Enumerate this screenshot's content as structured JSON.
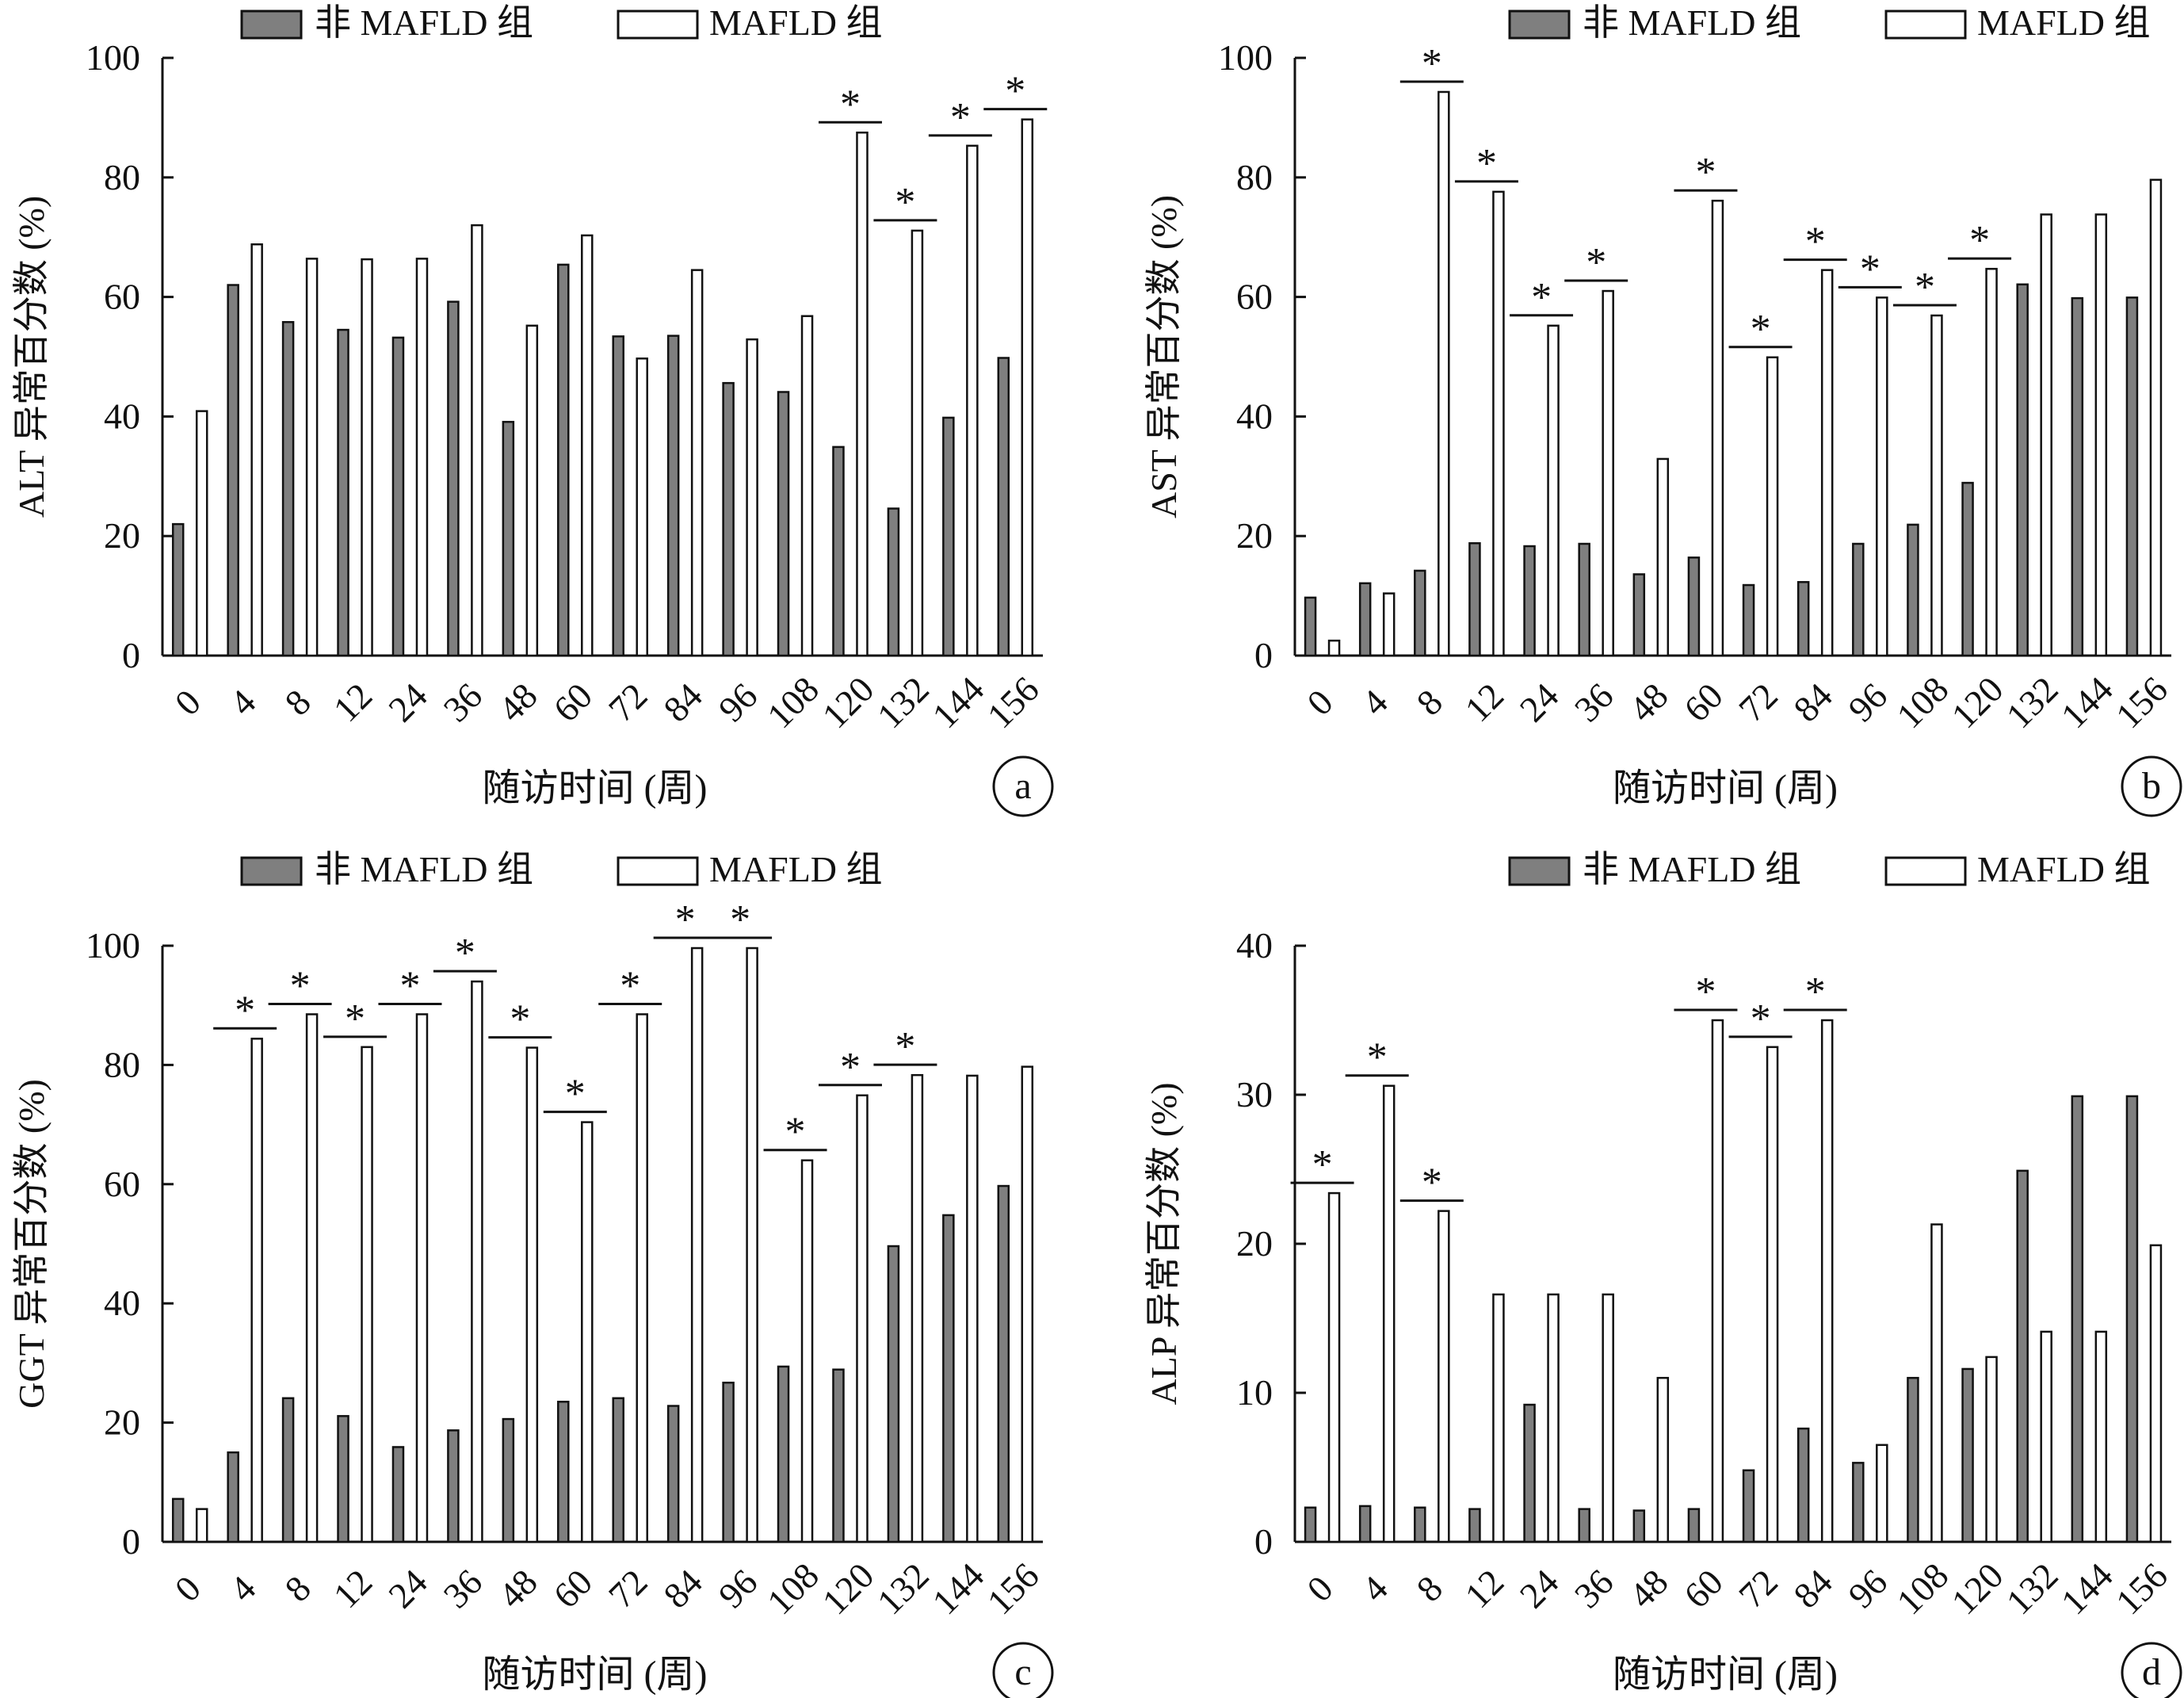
{
  "legend": {
    "non_mafld": "非 MAFLD 组",
    "mafld": "MAFLD 组"
  },
  "colors": {
    "non_mafld_fill": "#7f7f7f",
    "mafld_fill": "#ffffff",
    "stroke": "#111111"
  },
  "chart_data": [
    {
      "type": "bar",
      "panel_letter": "a",
      "ylabel": "ALT 异常百分数 (%)",
      "xlabel": "随访时间 (周)",
      "ylim": [
        0,
        100
      ],
      "yticks": [
        0,
        20,
        40,
        60,
        80,
        100
      ],
      "categories": [
        "0",
        "4",
        "8",
        "12",
        "24",
        "36",
        "48",
        "60",
        "72",
        "84",
        "96",
        "108",
        "120",
        "132",
        "144",
        "156"
      ],
      "series": [
        {
          "name": "非 MAFLD 组",
          "values": [
            22,
            62,
            55.8,
            54.5,
            53.2,
            59.2,
            39.1,
            65.4,
            53.4,
            53.5,
            45.6,
            44.1,
            34.9,
            24.6,
            39.8,
            49.8
          ]
        },
        {
          "name": "MAFLD 组",
          "values": [
            40.9,
            68.8,
            66.4,
            66.3,
            66.4,
            72,
            55.2,
            70.3,
            49.7,
            64.5,
            52.9,
            56.8,
            87.5,
            71.1,
            85.3,
            89.7
          ]
        }
      ],
      "significance": [
        "",
        "",
        "",
        "",
        "",
        "",
        "",
        "",
        "",
        "",
        "",
        "",
        "*",
        "*",
        "*",
        "*"
      ],
      "grid": false,
      "legend_position": "top"
    },
    {
      "type": "bar",
      "panel_letter": "b",
      "ylabel": "AST 异常百分数 (%)",
      "xlabel": "随访时间 (周)",
      "ylim": [
        0,
        100
      ],
      "yticks": [
        0,
        20,
        40,
        60,
        80,
        100
      ],
      "categories": [
        "0",
        "4",
        "8",
        "12",
        "24",
        "36",
        "48",
        "60",
        "72",
        "84",
        "96",
        "108",
        "120",
        "132",
        "144",
        "156"
      ],
      "series": [
        {
          "name": "非 MAFLD 组",
          "values": [
            9.7,
            12.1,
            14.2,
            18.8,
            18.3,
            18.7,
            13.6,
            16.4,
            11.8,
            12.3,
            18.7,
            21.9,
            28.9,
            62.1,
            59.8,
            59.9
          ]
        },
        {
          "name": "MAFLD 组",
          "values": [
            2.5,
            10.4,
            94.3,
            77.6,
            55.2,
            61,
            32.9,
            76.1,
            49.9,
            64.5,
            59.9,
            56.9,
            64.7,
            73.8,
            73.8,
            79.6
          ]
        }
      ],
      "significance": [
        "",
        "",
        "*",
        "*",
        "*",
        "*",
        "",
        "*",
        "*",
        "*",
        "*",
        "*",
        "*",
        "",
        "",
        ""
      ],
      "grid": false,
      "legend_position": "top"
    },
    {
      "type": "bar",
      "panel_letter": "c",
      "ylabel": "GGT 异常百分数 (%)",
      "xlabel": "随访时间 (周)",
      "ylim": [
        0,
        100
      ],
      "yticks": [
        0,
        20,
        40,
        60,
        80,
        100
      ],
      "categories": [
        "0",
        "4",
        "8",
        "12",
        "24",
        "36",
        "48",
        "60",
        "72",
        "84",
        "96",
        "108",
        "120",
        "132",
        "144",
        "156"
      ],
      "series": [
        {
          "name": "非 MAFLD 组",
          "values": [
            7.2,
            15,
            24.1,
            21.1,
            15.9,
            18.7,
            20.6,
            23.5,
            24.1,
            22.8,
            26.7,
            29.4,
            28.9,
            49.6,
            54.8,
            59.7
          ]
        },
        {
          "name": "MAFLD 组",
          "values": [
            5.5,
            84.4,
            88.5,
            83,
            88.5,
            94,
            82.9,
            70.4,
            88.5,
            99.6,
            99.6,
            64,
            74.9,
            78.3,
            78.2,
            79.7
          ]
        }
      ],
      "significance": [
        "",
        "*",
        "*",
        "*",
        "*",
        "*",
        "*",
        "*",
        "*",
        "*",
        "*",
        "*",
        "*",
        "*",
        "",
        ""
      ],
      "grid": false,
      "legend_position": "top"
    },
    {
      "type": "bar",
      "panel_letter": "d",
      "ylabel": "ALP 异常百分数 (%)",
      "xlabel": "随访时间 (周)",
      "ylim": [
        0,
        40
      ],
      "yticks": [
        0,
        10,
        20,
        30,
        40
      ],
      "categories": [
        "0",
        "4",
        "8",
        "12",
        "24",
        "36",
        "48",
        "60",
        "72",
        "84",
        "96",
        "108",
        "120",
        "132",
        "144",
        "156"
      ],
      "series": [
        {
          "name": "非 MAFLD 组",
          "values": [
            2.3,
            2.4,
            2.3,
            2.2,
            9.2,
            2.2,
            2.1,
            2.2,
            4.8,
            7.6,
            5.3,
            11,
            11.6,
            24.9,
            29.9,
            29.9
          ]
        },
        {
          "name": "MAFLD 组",
          "values": [
            23.4,
            30.6,
            22.2,
            16.6,
            16.6,
            16.6,
            11,
            35,
            33.2,
            35,
            6.5,
            21.3,
            12.4,
            14.1,
            14.1,
            19.9
          ]
        }
      ],
      "significance": [
        "*",
        "*",
        "*",
        "",
        "",
        "",
        "",
        "*",
        "*",
        "*",
        "",
        "",
        "",
        "",
        "",
        ""
      ],
      "grid": false,
      "legend_position": "top"
    }
  ]
}
